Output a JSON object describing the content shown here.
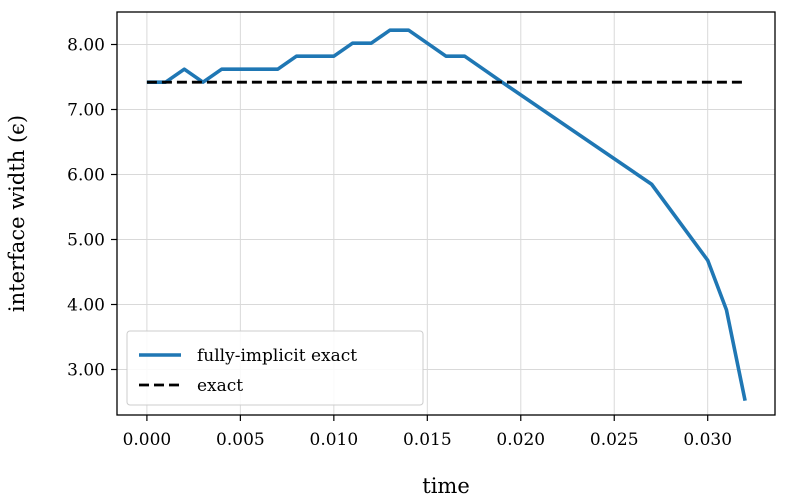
{
  "chart_data": {
    "type": "line",
    "title": "",
    "xlabel": "time",
    "ylabel": "interface width (ϵ)",
    "xlim": [
      -0.0016,
      0.0336
    ],
    "ylim": [
      2.3,
      8.5
    ],
    "xticks": [
      0.0,
      0.005,
      0.01,
      0.015,
      0.02,
      0.025,
      0.03
    ],
    "xtick_labels": [
      "0.000",
      "0.005",
      "0.010",
      "0.015",
      "0.020",
      "0.025",
      "0.030"
    ],
    "yticks": [
      3.0,
      4.0,
      5.0,
      6.0,
      7.0,
      8.0
    ],
    "ytick_labels": [
      "3.00",
      "4.00",
      "5.00",
      "6.00",
      "7.00",
      "8.00"
    ],
    "grid": true,
    "legend_position": "lower-left",
    "series": [
      {
        "name": "fully-implicit exact",
        "style": "solid",
        "color": "#1f77b4",
        "x": [
          0.0,
          0.001,
          0.002,
          0.003,
          0.004,
          0.005,
          0.006,
          0.007,
          0.008,
          0.009,
          0.01,
          0.011,
          0.012,
          0.013,
          0.014,
          0.015,
          0.016,
          0.017,
          0.018,
          0.019,
          0.027,
          0.03,
          0.031,
          0.032
        ],
        "y": [
          7.42,
          7.42,
          7.62,
          7.42,
          7.62,
          7.62,
          7.62,
          7.62,
          7.82,
          7.82,
          7.82,
          8.02,
          8.02,
          8.22,
          8.22,
          8.02,
          7.82,
          7.82,
          7.62,
          7.42,
          5.85,
          4.68,
          3.92,
          2.52
        ]
      },
      {
        "name": "exact",
        "style": "dashed",
        "color": "#000000",
        "x": [
          0.0,
          0.032
        ],
        "y": [
          7.42,
          7.42
        ]
      }
    ]
  }
}
